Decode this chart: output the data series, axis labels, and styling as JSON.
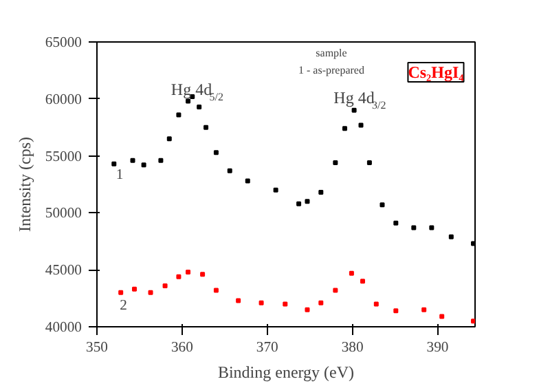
{
  "chart_data": {
    "type": "scatter",
    "marker": "square",
    "grid": false,
    "xlabel": "Binding energy (eV)",
    "ylabel": "Intensity (cps)",
    "xlim": [
      350,
      394.4
    ],
    "xticks": [
      350,
      360,
      370,
      380,
      390
    ],
    "ylim": [
      40000,
      65000
    ],
    "yticks": [
      40000,
      45000,
      50000,
      55000,
      60000,
      65000
    ],
    "annotations": [
      "Cs₂HgI₄",
      "sample",
      "1 - as-prepared",
      "Hg 4d$_{5/2}$",
      "Hg 4d$_{3/2}$",
      "1",
      "2"
    ],
    "series": [
      {
        "color": "#000000",
        "x": [
          352,
          354.2,
          355.5,
          357.5,
          358.5,
          359.6,
          360.7,
          361.2,
          362,
          362.8,
          364,
          365.6,
          367.7,
          371,
          373.7,
          374.7,
          376.3,
          378,
          379.1,
          380.2,
          381,
          382,
          383.5,
          385.1,
          387.2,
          389.3,
          391.6,
          394.2
        ],
        "values": [
          54300,
          54600,
          54200,
          54600,
          56500,
          58600,
          59800,
          60200,
          59300,
          57500,
          55300,
          53700,
          52800,
          52000,
          50800,
          51000,
          51800,
          54400,
          57400,
          59000,
          57700,
          54400,
          50700,
          49100,
          48700,
          48700,
          47900,
          47300
        ]
      },
      {
        "color": "#ff0000",
        "x": [
          352.8,
          354.4,
          356.3,
          358,
          359.6,
          360.7,
          362.4,
          364,
          366.6,
          369.3,
          372.1,
          374.7,
          376.3,
          378,
          379.9,
          381.2,
          382.8,
          385.1,
          388.4,
          390.5,
          394.2
        ],
        "values": [
          43000,
          43300,
          43000,
          43600,
          44400,
          44800,
          44600,
          43200,
          42300,
          42100,
          42000,
          41500,
          42100,
          43200,
          44700,
          44000,
          42000,
          41400,
          41500,
          40900,
          40500
        ]
      }
    ]
  }
}
